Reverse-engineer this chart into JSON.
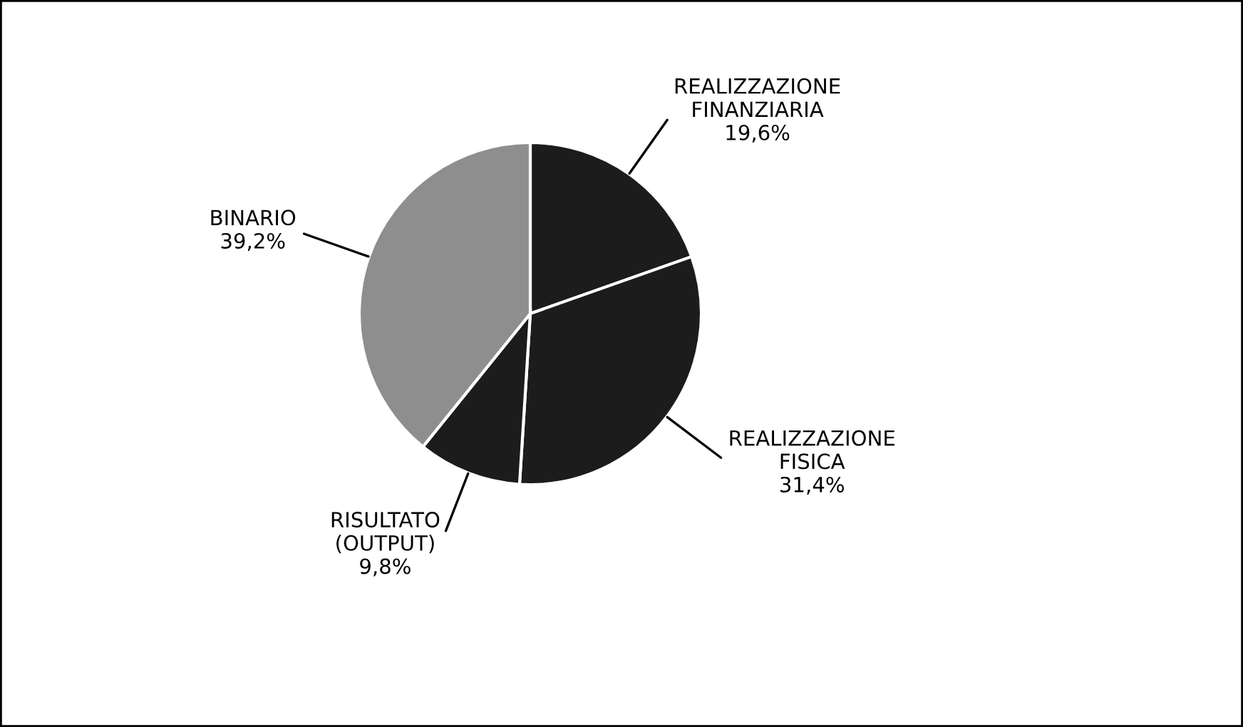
{
  "chart_data": {
    "type": "pie",
    "categories": [
      "REALIZZAZIONE\nFINANZIARIA",
      "REALIZZAZIONE\nFISICA",
      "RISULTATO\n(OUTPUT)",
      "BINARIO"
    ],
    "values": [
      19.6,
      31.4,
      9.8,
      39.2
    ],
    "value_labels": [
      "19,6%",
      "31,4%",
      "9,8%",
      "39,2%"
    ],
    "colors": [
      "#1c1c1c",
      "#1c1c1c",
      "#1c1c1c",
      "#8e8e8e"
    ],
    "legend": false
  }
}
